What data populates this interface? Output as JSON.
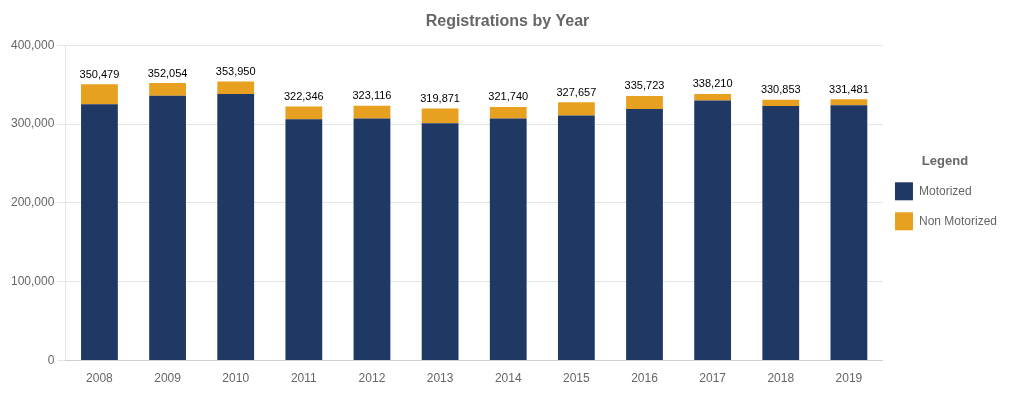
{
  "chart_data": {
    "type": "bar",
    "title": "Registrations by Year",
    "categories": [
      "2008",
      "2009",
      "2010",
      "2011",
      "2012",
      "2013",
      "2014",
      "2015",
      "2016",
      "2017",
      "2018",
      "2019"
    ],
    "series": [
      {
        "name": "Motorized",
        "color": "#1F3864",
        "values": [
          325000,
          336000,
          338000,
          306000,
          307000,
          301000,
          307000,
          311000,
          319000,
          330000,
          323000,
          324000
        ]
      },
      {
        "name": "Non Motorized",
        "color": "#E8A020",
        "values": [
          25479,
          16054,
          15950,
          16346,
          16116,
          18871,
          14740,
          16657,
          16723,
          8210,
          7853,
          7481
        ]
      }
    ],
    "totals": [
      350479,
      352054,
      353950,
      322346,
      323116,
      319871,
      321740,
      327657,
      335723,
      338210,
      330853,
      331481
    ],
    "total_labels": [
      "350,479",
      "352,054",
      "353,950",
      "322,346",
      "323,116",
      "319,871",
      "321,740",
      "327,657",
      "335,723",
      "338,210",
      "330,853",
      "331,481"
    ],
    "stacked": true,
    "ylim": [
      0,
      400000
    ],
    "yticks": [
      0,
      {
        "value": 100000,
        "label": "100,000"
      },
      {
        "value": 200000,
        "label": "200,000"
      },
      {
        "value": 300000,
        "label": "300,000"
      },
      {
        "value": 400000,
        "label": "400,000"
      }
    ],
    "grid": true,
    "legend": "right",
    "legend_title": "Legend"
  }
}
